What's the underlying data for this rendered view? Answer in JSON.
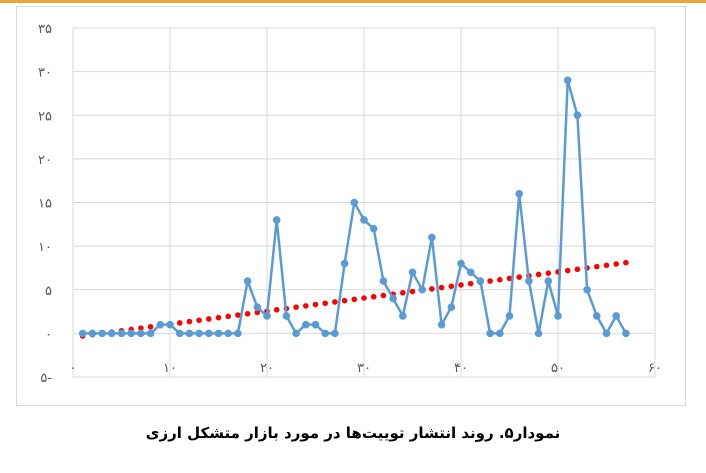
{
  "caption": "نمودار۵. روند انتشار توییت‌ها در مورد بازار متشکل ارزی",
  "colors": {
    "series": "#5b9bd5",
    "trendline": "#ff0000",
    "grid": "#d9d9d9",
    "accent_rule": "#e9a73a"
  },
  "chart_data": {
    "type": "scatter",
    "title": "",
    "xlabel": "",
    "ylabel": "",
    "xlim": [
      0,
      60
    ],
    "ylim": [
      -5,
      35
    ],
    "grid": true,
    "legend": "none",
    "x_ticks": [
      {
        "value": 0,
        "label": "۰"
      },
      {
        "value": 10,
        "label": "۱۰"
      },
      {
        "value": 20,
        "label": "۲۰"
      },
      {
        "value": 30,
        "label": "۳۰"
      },
      {
        "value": 40,
        "label": "۴۰"
      },
      {
        "value": 50,
        "label": "۵۰"
      },
      {
        "value": 60,
        "label": "۶۰"
      }
    ],
    "y_ticks": [
      {
        "value": -5,
        "label": "۵-"
      },
      {
        "value": 0,
        "label": "۰"
      },
      {
        "value": 5,
        "label": "۵"
      },
      {
        "value": 10,
        "label": "۱۰"
      },
      {
        "value": 15,
        "label": "۱۵"
      },
      {
        "value": 20,
        "label": "۲۰"
      },
      {
        "value": 25,
        "label": "۲۵"
      },
      {
        "value": 30,
        "label": "۳۰"
      },
      {
        "value": 35,
        "label": "۳۵"
      }
    ],
    "series": [
      {
        "style": "line-with-markers",
        "x": [
          1,
          2,
          3,
          4,
          5,
          6,
          7,
          8,
          9,
          10,
          11,
          12,
          13,
          14,
          15,
          16,
          17,
          18,
          19,
          20,
          21,
          22,
          23,
          24,
          25,
          26,
          27,
          28,
          29,
          30,
          31,
          32,
          33,
          34,
          35,
          36,
          37,
          38,
          39,
          40,
          41,
          42,
          43,
          44,
          45,
          46,
          47,
          48,
          49,
          50,
          51,
          52,
          53,
          54,
          55,
          56,
          57
        ],
        "y": [
          0,
          0,
          0,
          0,
          0,
          0,
          0,
          0,
          1,
          1,
          0,
          0,
          0,
          0,
          0,
          0,
          0,
          6,
          3,
          2,
          13,
          2,
          0,
          1,
          1,
          0,
          0,
          8,
          15,
          13,
          12,
          6,
          4,
          2,
          7,
          5,
          11,
          1,
          3,
          8,
          7,
          6,
          0,
          0,
          2,
          16,
          6,
          0,
          6,
          2,
          29,
          25,
          5,
          2,
          0,
          2,
          0
        ]
      },
      {
        "style": "dotted-trendline",
        "x": [
          1,
          2,
          3,
          4,
          5,
          6,
          7,
          8,
          9,
          10,
          11,
          12,
          13,
          14,
          15,
          16,
          17,
          18,
          19,
          20,
          21,
          22,
          23,
          24,
          25,
          26,
          27,
          28,
          29,
          30,
          31,
          32,
          33,
          34,
          35,
          36,
          37,
          38,
          39,
          40,
          41,
          42,
          43,
          44,
          45,
          46,
          47,
          48,
          49,
          50,
          51,
          52,
          53,
          54,
          55,
          56,
          57
        ],
        "y": [
          -0.3,
          -0.15,
          0.0,
          0.15,
          0.3,
          0.45,
          0.6,
          0.75,
          0.9,
          1.05,
          1.2,
          1.35,
          1.5,
          1.65,
          1.8,
          1.95,
          2.1,
          2.25,
          2.4,
          2.55,
          2.7,
          2.85,
          3.0,
          3.15,
          3.3,
          3.45,
          3.6,
          3.75,
          3.9,
          4.05,
          4.2,
          4.35,
          4.5,
          4.65,
          4.8,
          4.95,
          5.1,
          5.25,
          5.4,
          5.55,
          5.7,
          5.85,
          6.0,
          6.15,
          6.3,
          6.45,
          6.6,
          6.75,
          6.9,
          7.05,
          7.2,
          7.35,
          7.5,
          7.65,
          7.8,
          7.95,
          8.1
        ]
      }
    ]
  }
}
